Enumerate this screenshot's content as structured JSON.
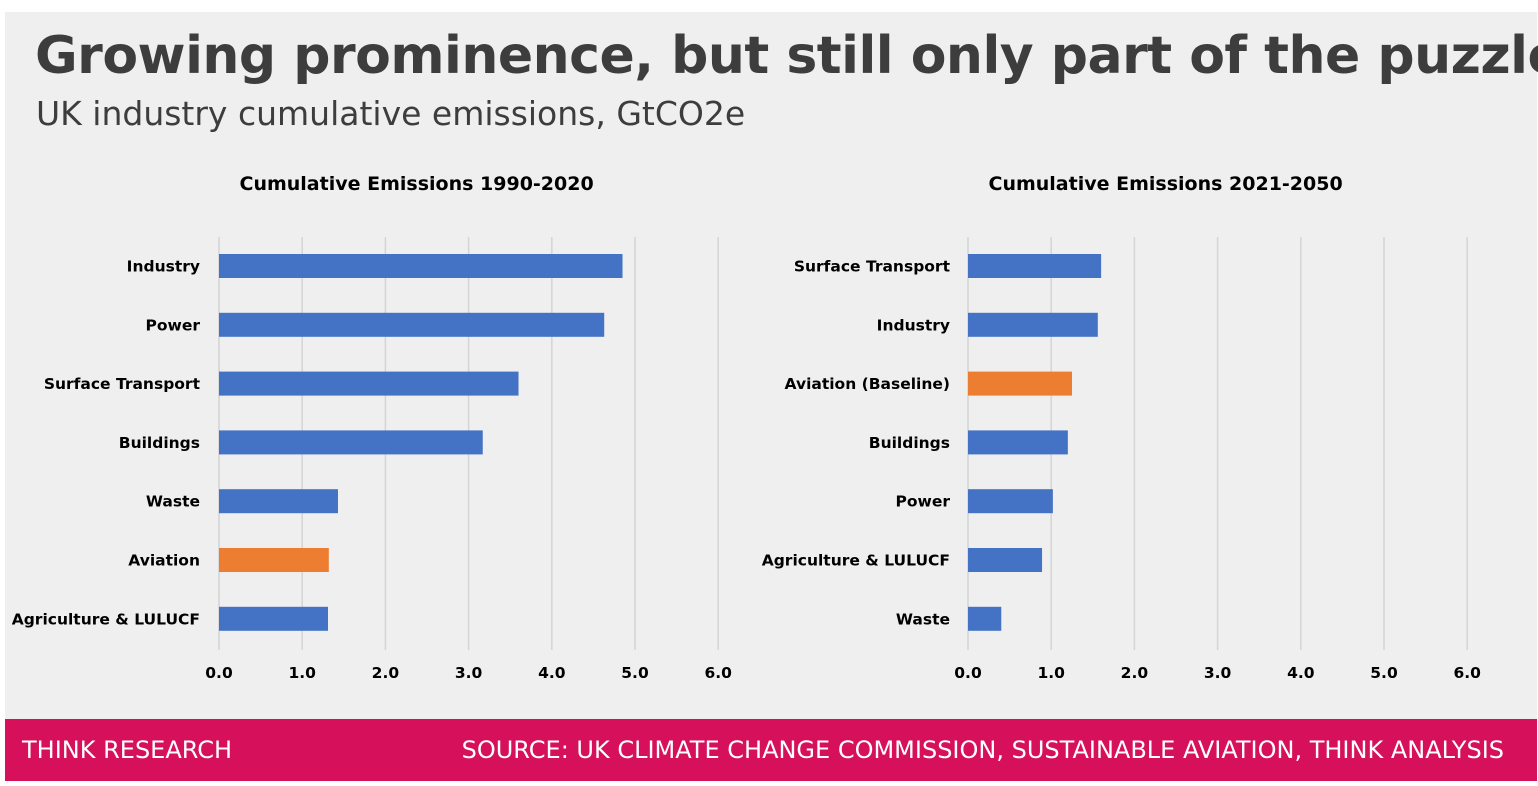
{
  "header": {
    "title": "Growing prominence, but still only part of the puzzle",
    "subtitle": "UK industry cumulative emissions, GtCO2e"
  },
  "footer": {
    "left": "THINK RESEARCH",
    "right": "SOURCE: UK CLIMATE CHANGE COMMISSION, SUSTAINABLE AVIATION, THINK ANALYSIS"
  },
  "colors": {
    "default_bar": "#4472c4",
    "highlight_bar": "#ed7d31",
    "footer": "#d6105a"
  },
  "chart_data": [
    {
      "type": "bar",
      "orientation": "horizontal",
      "title": "Cumulative Emissions 1990-2020",
      "categories": [
        "Industry",
        "Power",
        "Surface Transport",
        "Buildings",
        "Waste",
        "Aviation",
        "Agriculture & LULUCF"
      ],
      "values": [
        4.85,
        4.63,
        3.6,
        3.17,
        1.43,
        1.32,
        1.31
      ],
      "highlight": [
        "Aviation"
      ],
      "xlim": [
        0,
        6
      ],
      "xticks": [
        "0.0",
        "1.0",
        "2.0",
        "3.0",
        "4.0",
        "5.0",
        "6.0"
      ],
      "grid": true
    },
    {
      "type": "bar",
      "orientation": "horizontal",
      "title": "Cumulative Emissions 2021-2050",
      "categories": [
        "Surface Transport",
        "Industry",
        "Aviation (Baseline)",
        "Buildings",
        "Power",
        "Agriculture & LULUCF",
        "Waste"
      ],
      "values": [
        1.6,
        1.56,
        1.25,
        1.2,
        1.02,
        0.89,
        0.4
      ],
      "highlight": [
        "Aviation (Baseline)"
      ],
      "xlim": [
        0,
        6
      ],
      "xticks": [
        "0.0",
        "1.0",
        "2.0",
        "3.0",
        "4.0",
        "5.0",
        "6.0"
      ],
      "grid": true
    }
  ]
}
